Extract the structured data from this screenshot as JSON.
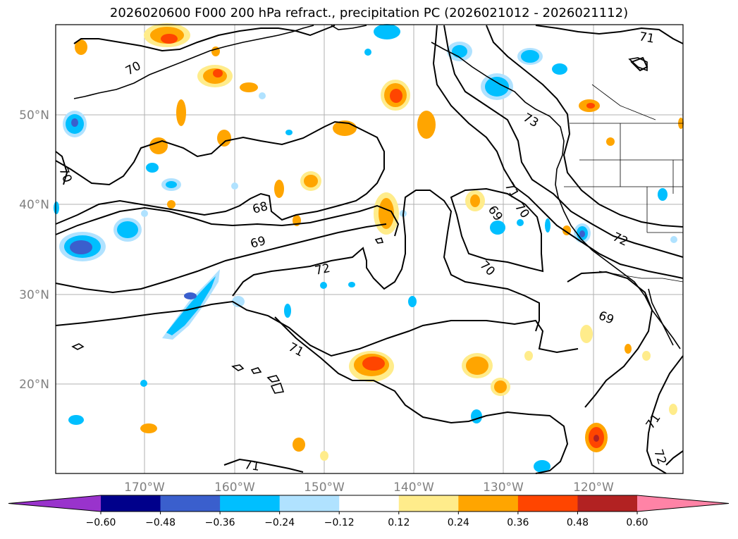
{
  "title": "2026020600 F000 200 hPa refract., precipitation PC (2026021012 - 2026021112)",
  "map": {
    "lon_labels": [
      "170°W",
      "160°W",
      "150°W",
      "140°W",
      "130°W",
      "120°W"
    ],
    "lat_labels": [
      "50°N",
      "40°N",
      "30°N",
      "20°N"
    ],
    "contour_labels": [
      "70",
      "71",
      "70",
      "68",
      "69",
      "72",
      "71",
      "71",
      "70",
      "69",
      "70",
      "73",
      "72",
      "69",
      "71",
      "72",
      "71"
    ],
    "line_color": "#000000",
    "grid_color": "#b0b0b0"
  },
  "colorbar": {
    "ticks": [
      "−0.60",
      "−0.48",
      "−0.36",
      "−0.24",
      "−0.12",
      "0.12",
      "0.24",
      "0.36",
      "0.48",
      "0.60"
    ],
    "colors": [
      "#9933cc",
      "#00008b",
      "#3a5fcd",
      "#00bfff",
      "#b0e2ff",
      "#ffffff",
      "#ffec8b",
      "#ffa500",
      "#ff4500",
      "#b22222",
      "#ff83a6"
    ]
  }
}
